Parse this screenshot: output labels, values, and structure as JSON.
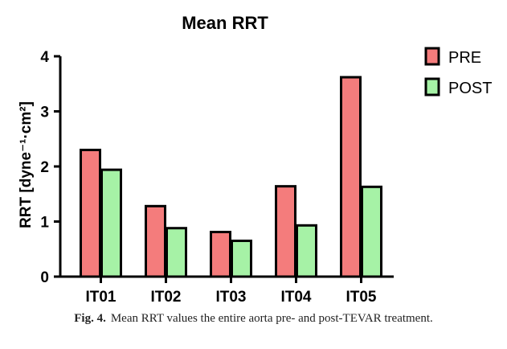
{
  "chart_data": {
    "type": "bar",
    "title": "Mean RRT",
    "ylabel": "RRT [dyne⁻¹·cm²]",
    "xlabel": "",
    "categories": [
      "IT01",
      "IT02",
      "IT03",
      "IT04",
      "IT05"
    ],
    "series": [
      {
        "name": "PRE",
        "color": "#f47c7c",
        "values": [
          2.3,
          1.28,
          0.81,
          1.64,
          3.62
        ]
      },
      {
        "name": "POST",
        "color": "#a6f2a6",
        "values": [
          1.94,
          0.88,
          0.65,
          0.93,
          1.63
        ]
      }
    ],
    "yticks": [
      0,
      1,
      2,
      3,
      4
    ],
    "ylim": [
      0,
      4
    ],
    "legend_position": "top-right",
    "grid": false
  },
  "caption": {
    "label": "Fig. 4.",
    "text": "Mean RRT values the entire aorta pre- and post-TEVAR treatment."
  }
}
